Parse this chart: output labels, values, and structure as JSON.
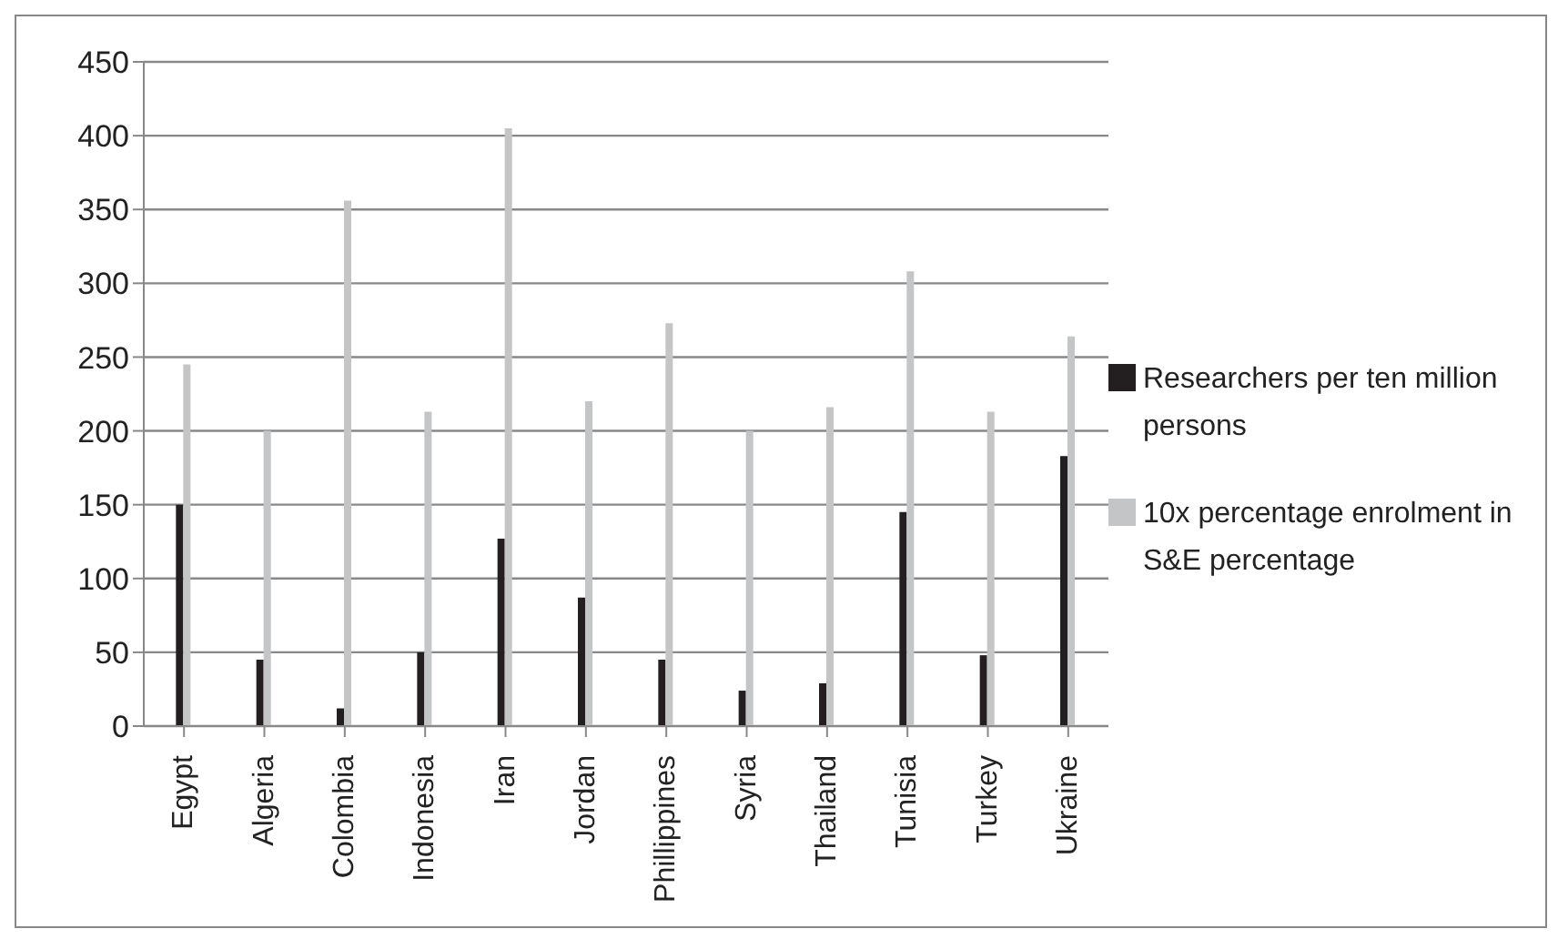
{
  "chart_data": {
    "type": "bar",
    "categories": [
      "Egypt",
      "Algeria",
      "Colombia",
      "Indonesia",
      "Iran",
      "Jordan",
      "Phillippines",
      "Syria",
      "Thailand",
      "Tunisia",
      "Turkey",
      "Ukraine"
    ],
    "series": [
      {
        "name": "Researchers per ten million persons",
        "color": "#231f20",
        "values": [
          150,
          45,
          12,
          50,
          127,
          87,
          45,
          24,
          29,
          145,
          48,
          183
        ]
      },
      {
        "name": "10x percentage enrolment in S&E percentage",
        "color": "#c4c5c7",
        "values": [
          245,
          200,
          356,
          213,
          405,
          220,
          273,
          200,
          216,
          308,
          213,
          264
        ]
      }
    ],
    "ylim": [
      0,
      450
    ],
    "yticks": [
      0,
      50,
      100,
      150,
      200,
      250,
      300,
      350,
      400,
      450
    ],
    "grid": "y",
    "legend": "right"
  }
}
